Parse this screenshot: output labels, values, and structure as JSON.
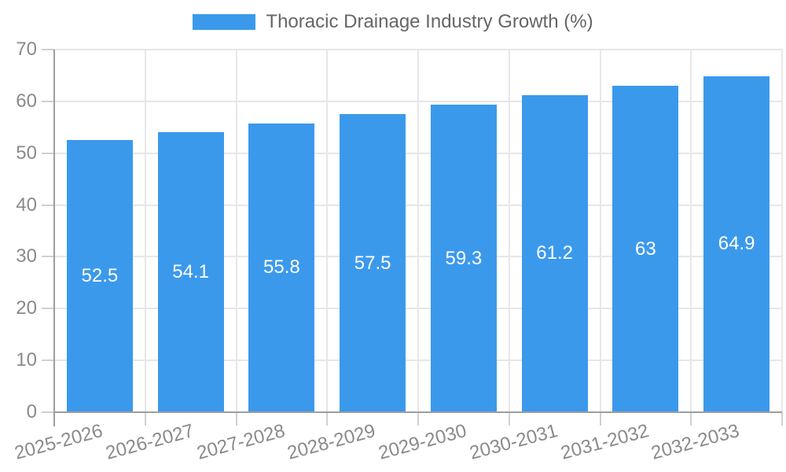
{
  "chart_data": {
    "type": "bar",
    "title": "Thoracic Drainage Industry Growth (%)",
    "categories": [
      "2025-2026",
      "2026-2027",
      "2027-2028",
      "2028-2029",
      "2029-2030",
      "2030-2031",
      "2031-2032",
      "2032-2033"
    ],
    "values": [
      52.5,
      54.1,
      55.8,
      57.5,
      59.3,
      61.2,
      63,
      64.9
    ],
    "value_labels": [
      "52.5",
      "54.1",
      "55.8",
      "57.5",
      "59.3",
      "61.2",
      "63",
      "64.9"
    ],
    "xlabel": "",
    "ylabel": "",
    "ylim": [
      0,
      70
    ],
    "yticks": [
      0,
      10,
      20,
      30,
      40,
      50,
      60,
      70
    ],
    "grid": true,
    "legend_position": "top",
    "colors": {
      "bar": "#3B99EC",
      "value_label": "#ffffff",
      "axis_text": "#8a8a8a",
      "title_text": "#666666",
      "grid": "#e7e7e7",
      "tick": "#d0d0d0",
      "axis_line": "#9e9e9e",
      "background": "#ffffff"
    }
  }
}
